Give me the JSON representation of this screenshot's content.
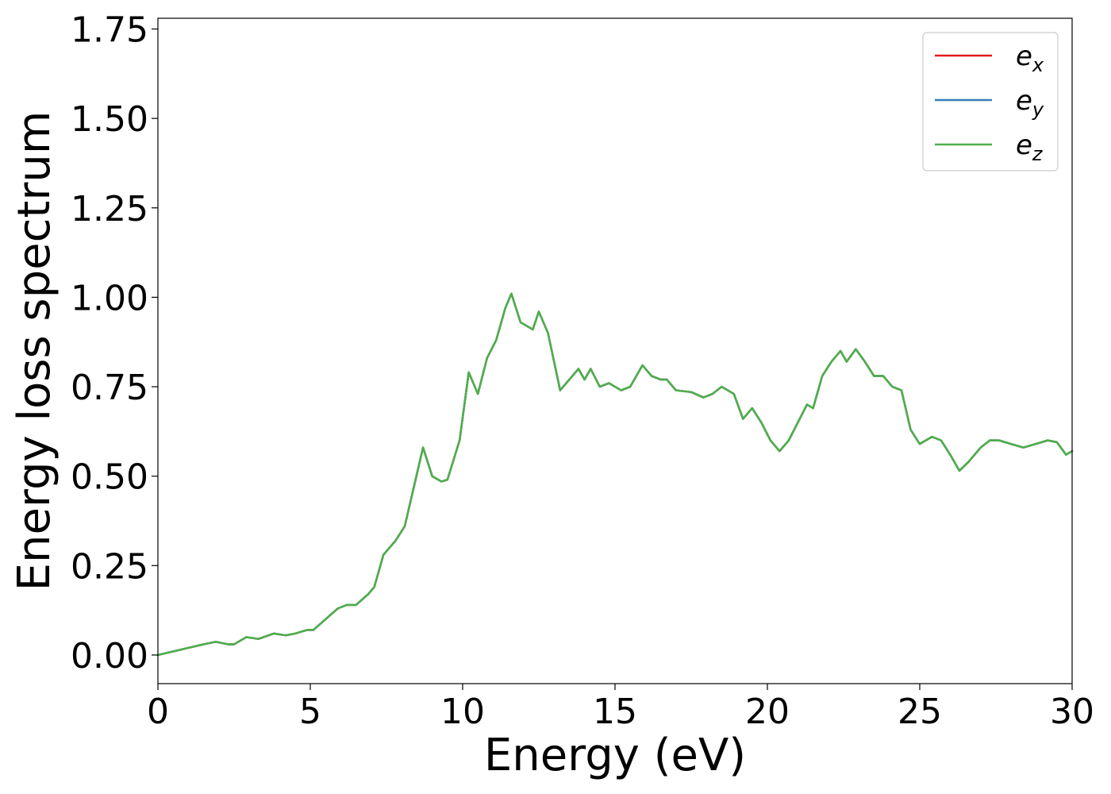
{
  "chart_data": {
    "type": "line",
    "xlabel": "Energy (eV)",
    "ylabel": "Energy loss spectrum",
    "xlim": [
      0,
      30
    ],
    "ylim": [
      -0.08,
      1.78
    ],
    "xticks": [
      0,
      5,
      10,
      15,
      20,
      25,
      30
    ],
    "xtick_labels": [
      "0",
      "5",
      "10",
      "15",
      "20",
      "25",
      "30"
    ],
    "yticks": [
      0.0,
      0.25,
      0.5,
      0.75,
      1.0,
      1.25,
      1.5,
      1.75
    ],
    "ytick_labels": [
      "0.00",
      "0.25",
      "0.50",
      "0.75",
      "1.00",
      "1.25",
      "1.50",
      "1.75"
    ],
    "grid": false,
    "legend_position": "top-right",
    "series": [
      {
        "name": "e_x",
        "label_base": "e",
        "label_sub": "x",
        "color": "#e41a1c",
        "x": [
          0,
          0.5,
          1.0,
          1.5,
          1.9,
          2.3,
          2.5,
          2.9,
          3.3,
          3.8,
          4.2,
          4.5,
          4.9,
          5.1,
          5.5,
          5.9,
          6.2,
          6.5,
          6.9,
          7.1,
          7.4,
          7.8,
          8.1,
          8.4,
          8.7,
          9.0,
          9.3,
          9.5,
          9.9,
          10.2,
          10.5,
          10.8,
          11.1,
          11.4,
          11.6,
          11.9,
          12.1,
          12.3,
          12.5,
          12.8,
          13.0,
          13.2,
          13.5,
          13.8,
          14.0,
          14.2,
          14.5,
          14.8,
          15.2,
          15.5,
          15.9,
          16.2,
          16.5,
          16.7,
          17.0,
          17.5,
          17.9,
          18.2,
          18.5,
          18.9,
          19.2,
          19.5,
          19.8,
          20.1,
          20.4,
          20.7,
          21.0,
          21.3,
          21.5,
          21.8,
          22.1,
          22.4,
          22.6,
          22.9,
          23.2,
          23.5,
          23.8,
          24.1,
          24.4,
          24.7,
          25.0,
          25.4,
          25.7,
          26.0,
          26.3,
          26.6,
          27.0,
          27.3,
          27.6,
          28.0,
          28.4,
          28.8,
          29.2,
          29.5,
          29.8,
          30.0
        ],
        "y": [
          0.0,
          0.01,
          0.02,
          0.03,
          0.037,
          0.03,
          0.03,
          0.05,
          0.045,
          0.06,
          0.055,
          0.06,
          0.07,
          0.07,
          0.1,
          0.13,
          0.14,
          0.14,
          0.17,
          0.19,
          0.28,
          0.32,
          0.36,
          0.47,
          0.58,
          0.5,
          0.485,
          0.49,
          0.6,
          0.79,
          0.73,
          0.83,
          0.88,
          0.97,
          1.01,
          0.93,
          0.92,
          0.91,
          0.96,
          0.9,
          0.82,
          0.74,
          0.77,
          0.8,
          0.77,
          0.8,
          0.75,
          0.76,
          0.74,
          0.75,
          0.81,
          0.78,
          0.77,
          0.77,
          0.74,
          0.735,
          0.72,
          0.73,
          0.75,
          0.73,
          0.66,
          0.69,
          0.65,
          0.6,
          0.57,
          0.6,
          0.65,
          0.7,
          0.69,
          0.78,
          0.82,
          0.85,
          0.82,
          0.855,
          0.82,
          0.78,
          0.78,
          0.75,
          0.74,
          0.63,
          0.59,
          0.61,
          0.6,
          0.56,
          0.515,
          0.54,
          0.58,
          0.6,
          0.6,
          0.59,
          0.58,
          0.59,
          0.6,
          0.595,
          0.56,
          0.57
        ]
      },
      {
        "name": "e_y",
        "label_base": "e",
        "label_sub": "y",
        "color": "#377eb8",
        "x": [
          0,
          0.5,
          1.0,
          1.5,
          1.9,
          2.3,
          2.5,
          2.9,
          3.3,
          3.8,
          4.2,
          4.5,
          4.9,
          5.1,
          5.5,
          5.9,
          6.2,
          6.5,
          6.9,
          7.1,
          7.4,
          7.8,
          8.1,
          8.4,
          8.7,
          9.0,
          9.3,
          9.5,
          9.9,
          10.2,
          10.5,
          10.8,
          11.1,
          11.4,
          11.6,
          11.9,
          12.1,
          12.3,
          12.5,
          12.8,
          13.0,
          13.2,
          13.5,
          13.8,
          14.0,
          14.2,
          14.5,
          14.8,
          15.2,
          15.5,
          15.9,
          16.2,
          16.5,
          16.7,
          17.0,
          17.5,
          17.9,
          18.2,
          18.5,
          18.9,
          19.2,
          19.5,
          19.8,
          20.1,
          20.4,
          20.7,
          21.0,
          21.3,
          21.5,
          21.8,
          22.1,
          22.4,
          22.6,
          22.9,
          23.2,
          23.5,
          23.8,
          24.1,
          24.4,
          24.7,
          25.0,
          25.4,
          25.7,
          26.0,
          26.3,
          26.6,
          27.0,
          27.3,
          27.6,
          28.0,
          28.4,
          28.8,
          29.2,
          29.5,
          29.8,
          30.0
        ],
        "y": [
          0.0,
          0.01,
          0.02,
          0.03,
          0.037,
          0.03,
          0.03,
          0.05,
          0.045,
          0.06,
          0.055,
          0.06,
          0.07,
          0.07,
          0.1,
          0.13,
          0.14,
          0.14,
          0.17,
          0.19,
          0.28,
          0.32,
          0.36,
          0.47,
          0.58,
          0.5,
          0.485,
          0.49,
          0.6,
          0.79,
          0.73,
          0.83,
          0.88,
          0.97,
          1.01,
          0.93,
          0.92,
          0.91,
          0.96,
          0.9,
          0.82,
          0.74,
          0.77,
          0.8,
          0.77,
          0.8,
          0.75,
          0.76,
          0.74,
          0.75,
          0.81,
          0.78,
          0.77,
          0.77,
          0.74,
          0.735,
          0.72,
          0.73,
          0.75,
          0.73,
          0.66,
          0.69,
          0.65,
          0.6,
          0.57,
          0.6,
          0.65,
          0.7,
          0.69,
          0.78,
          0.82,
          0.85,
          0.82,
          0.855,
          0.82,
          0.78,
          0.78,
          0.75,
          0.74,
          0.63,
          0.59,
          0.61,
          0.6,
          0.56,
          0.515,
          0.54,
          0.58,
          0.6,
          0.6,
          0.59,
          0.58,
          0.59,
          0.6,
          0.595,
          0.56,
          0.57
        ]
      },
      {
        "name": "e_z",
        "label_base": "e",
        "label_sub": "z",
        "color": "#4daf4a",
        "x": [
          0,
          0.5,
          1.0,
          1.5,
          1.9,
          2.3,
          2.5,
          2.9,
          3.3,
          3.8,
          4.2,
          4.5,
          4.9,
          5.1,
          5.5,
          5.9,
          6.2,
          6.5,
          6.9,
          7.1,
          7.4,
          7.8,
          8.1,
          8.4,
          8.7,
          9.0,
          9.3,
          9.5,
          9.9,
          10.2,
          10.5,
          10.8,
          11.1,
          11.4,
          11.6,
          11.9,
          12.1,
          12.3,
          12.5,
          12.8,
          13.0,
          13.2,
          13.5,
          13.8,
          14.0,
          14.2,
          14.5,
          14.8,
          15.2,
          15.5,
          15.9,
          16.2,
          16.5,
          16.7,
          17.0,
          17.5,
          17.9,
          18.2,
          18.5,
          18.9,
          19.2,
          19.5,
          19.8,
          20.1,
          20.4,
          20.7,
          21.0,
          21.3,
          21.5,
          21.8,
          22.1,
          22.4,
          22.6,
          22.9,
          23.2,
          23.5,
          23.8,
          24.1,
          24.4,
          24.7,
          25.0,
          25.4,
          25.7,
          26.0,
          26.3,
          26.6,
          27.0,
          27.3,
          27.6,
          28.0,
          28.4,
          28.8,
          29.2,
          29.5,
          29.8,
          30.0
        ],
        "y": [
          0.0,
          0.01,
          0.02,
          0.03,
          0.037,
          0.03,
          0.03,
          0.05,
          0.045,
          0.06,
          0.055,
          0.06,
          0.07,
          0.07,
          0.1,
          0.13,
          0.14,
          0.14,
          0.17,
          0.19,
          0.28,
          0.32,
          0.36,
          0.47,
          0.58,
          0.5,
          0.485,
          0.49,
          0.6,
          0.79,
          0.73,
          0.83,
          0.88,
          0.97,
          1.01,
          0.93,
          0.92,
          0.91,
          0.96,
          0.9,
          0.82,
          0.74,
          0.77,
          0.8,
          0.77,
          0.8,
          0.75,
          0.76,
          0.74,
          0.75,
          0.81,
          0.78,
          0.77,
          0.77,
          0.74,
          0.735,
          0.72,
          0.73,
          0.75,
          0.73,
          0.66,
          0.69,
          0.65,
          0.6,
          0.57,
          0.6,
          0.65,
          0.7,
          0.69,
          0.78,
          0.82,
          0.85,
          0.82,
          0.855,
          0.82,
          0.78,
          0.78,
          0.75,
          0.74,
          0.63,
          0.59,
          0.61,
          0.6,
          0.56,
          0.515,
          0.54,
          0.58,
          0.6,
          0.6,
          0.59,
          0.58,
          0.59,
          0.6,
          0.595,
          0.56,
          0.57
        ]
      }
    ]
  }
}
